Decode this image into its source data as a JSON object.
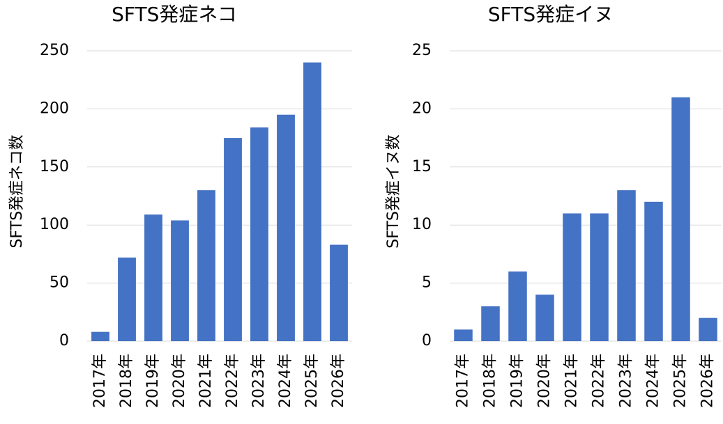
{
  "chart_data": [
    {
      "type": "bar",
      "title": "SFTS発症ネコ",
      "y_label": "SFTS発症ネコ数",
      "categories": [
        "2017年",
        "2018年",
        "2019年",
        "2020年",
        "2021年",
        "2022年",
        "2023年",
        "2024年",
        "2025年",
        "2026年"
      ],
      "values": [
        8,
        72,
        109,
        104,
        130,
        175,
        184,
        195,
        240,
        83
      ],
      "color": "#4472c4",
      "ylim": [
        0,
        250
      ],
      "yticks": [
        0,
        50,
        100,
        150,
        200,
        250
      ],
      "grid": true
    },
    {
      "type": "bar",
      "title": "SFTS発症イヌ",
      "y_label": "SFTS発症イヌ数",
      "categories": [
        "2017年",
        "2018年",
        "2019年",
        "2020年",
        "2021年",
        "2022年",
        "2023年",
        "2024年",
        "2025年",
        "2026年"
      ],
      "values": [
        1,
        3,
        6,
        4,
        11,
        11,
        13,
        12,
        21,
        2
      ],
      "color": "#4472c4",
      "ylim": [
        0,
        25
      ],
      "yticks": [
        0,
        5,
        10,
        15,
        20,
        25
      ],
      "grid": true
    }
  ]
}
